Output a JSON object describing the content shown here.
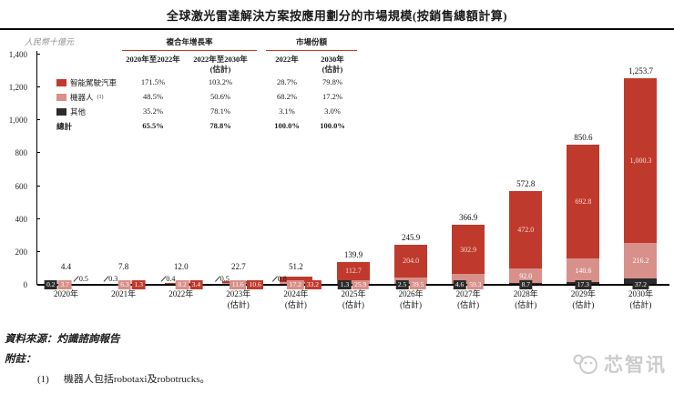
{
  "title": "全球激光雷達解決方案按應用劃分的市場規模(按銷售總額計算)",
  "unit_label": "人民幣十億元",
  "legend_table": {
    "group_headers": [
      "複合年增長率",
      "市場份額"
    ],
    "col_headers": [
      "2020年至2022年",
      "2022年至2030年\n(估計)",
      "2022年",
      "2030年\n(估計)"
    ],
    "rows": [
      {
        "label": "智能駕駛汽車",
        "sup": "",
        "swatch": "#bf3a2c",
        "bold": false,
        "values": [
          "171.5%",
          "103.2%",
          "28.7%",
          "79.8%"
        ]
      },
      {
        "label": "機器人",
        "sup": "(1)",
        "swatch": "#d8908a",
        "bold": false,
        "values": [
          "48.5%",
          "50.6%",
          "68.2%",
          "17.2%"
        ]
      },
      {
        "label": "其他",
        "sup": "",
        "swatch": "#2b2b2b",
        "bold": false,
        "values": [
          "35.2%",
          "78.1%",
          "3.1%",
          "3.0%"
        ]
      },
      {
        "label": "總計",
        "sup": "",
        "swatch": "",
        "bold": true,
        "values": [
          "65.5%",
          "78.8%",
          "100.0%",
          "100.0%"
        ]
      }
    ]
  },
  "chart_data": {
    "type": "bar",
    "stacked": true,
    "title": "全球激光雷達解決方案按應用劃分的市場規模(按銷售總額計算)",
    "ylabel": "人民幣十億元",
    "ylim": [
      0,
      1400
    ],
    "ytick_step": 200,
    "yticks": [
      "0",
      "200",
      "400",
      "600",
      "800",
      "1,000",
      "1,200",
      "1,400"
    ],
    "grid": false,
    "legend_position": "top-left",
    "stack_order_bottom_to_top": [
      "other",
      "robot",
      "auto"
    ],
    "series_meta": {
      "auto": {
        "name": "智能駕駛汽車",
        "color": "#bf3a2c"
      },
      "robot": {
        "name": "機器人(1)",
        "color": "#d8908a"
      },
      "other": {
        "name": "其他",
        "color": "#2b2b2b"
      }
    },
    "bars": [
      {
        "x": "2020年",
        "total": 4.4,
        "total_label": "4.4",
        "segments": {
          "other": {
            "v": 0.2,
            "label": "0.2",
            "mode": "chip"
          },
          "robot": {
            "v": 3.7,
            "label": "3.7",
            "mode": "chip"
          },
          "auto": {
            "v": 0.5,
            "label": "0.5",
            "mode": "callout"
          }
        }
      },
      {
        "x": "2021年",
        "total": 7.8,
        "total_label": "7.8",
        "segments": {
          "other": {
            "v": 0.3,
            "label": "0.3",
            "mode": "callout"
          },
          "robot": {
            "v": 6.3,
            "label": "6.3",
            "mode": "chip"
          },
          "auto": {
            "v": 1.3,
            "label": "1.3",
            "mode": "chip"
          }
        }
      },
      {
        "x": "2022年",
        "total": 12.0,
        "total_label": "12.0",
        "segments": {
          "other": {
            "v": 0.4,
            "label": "0.4",
            "mode": "callout"
          },
          "robot": {
            "v": 8.2,
            "label": "8.2",
            "mode": "chip"
          },
          "auto": {
            "v": 3.4,
            "label": "3.4",
            "mode": "chip"
          }
        }
      },
      {
        "x": "2023年\n(估計)",
        "total": 22.7,
        "total_label": "22.7",
        "segments": {
          "other": {
            "v": 0.5,
            "label": "0.5",
            "mode": "callout"
          },
          "robot": {
            "v": 11.6,
            "label": "11.6",
            "mode": "chip"
          },
          "auto": {
            "v": 10.6,
            "label": "10.6",
            "mode": "chip"
          }
        }
      },
      {
        "x": "2024年\n(估計)",
        "total": 51.2,
        "total_label": "51.2",
        "segments": {
          "other": {
            "v": 0.8,
            "label": "0.8",
            "mode": "callout"
          },
          "robot": {
            "v": 17.2,
            "label": "17.2",
            "mode": "chip"
          },
          "auto": {
            "v": 33.2,
            "label": "33.2",
            "mode": "chip"
          }
        }
      },
      {
        "x": "2025年\n(估計)",
        "total": 139.9,
        "total_label": "139.9",
        "segments": {
          "other": {
            "v": 1.3,
            "label": "1.3",
            "mode": "chip"
          },
          "robot": {
            "v": 25.9,
            "label": "25.9",
            "mode": "chip"
          },
          "auto": {
            "v": 112.7,
            "label": "112.7",
            "mode": "inside"
          }
        }
      },
      {
        "x": "2026年\n(估計)",
        "total": 245.9,
        "total_label": "245.9",
        "segments": {
          "other": {
            "v": 2.5,
            "label": "2.5",
            "mode": "chip"
          },
          "robot": {
            "v": 39.5,
            "label": "39.5",
            "mode": "chip"
          },
          "auto": {
            "v": 204.0,
            "label": "204.0",
            "mode": "inside"
          }
        }
      },
      {
        "x": "2027年\n(估計)",
        "total": 366.9,
        "total_label": "366.9",
        "segments": {
          "other": {
            "v": 4.6,
            "label": "4.6",
            "mode": "chip"
          },
          "robot": {
            "v": 59.3,
            "label": "59.3",
            "mode": "chip"
          },
          "auto": {
            "v": 302.9,
            "label": "302.9",
            "mode": "inside"
          }
        }
      },
      {
        "x": "2028年\n(估計)",
        "total": 572.8,
        "total_label": "572.8",
        "segments": {
          "other": {
            "v": 8.7,
            "label": "8.7",
            "mode": "chip"
          },
          "robot": {
            "v": 92.0,
            "label": "92.0",
            "mode": "inside"
          },
          "auto": {
            "v": 472.0,
            "label": "472.0",
            "mode": "inside"
          }
        }
      },
      {
        "x": "2029年\n(估計)",
        "total": 850.6,
        "total_label": "850.6",
        "segments": {
          "other": {
            "v": 17.3,
            "label": "17.3",
            "mode": "chip"
          },
          "robot": {
            "v": 140.6,
            "label": "140.6",
            "mode": "inside"
          },
          "auto": {
            "v": 692.8,
            "label": "692.8",
            "mode": "inside"
          }
        }
      },
      {
        "x": "2030年\n(估計)",
        "total": 1253.7,
        "total_label": "1,253.7",
        "segments": {
          "other": {
            "v": 37.2,
            "label": "37.2",
            "mode": "chip"
          },
          "robot": {
            "v": 216.2,
            "label": "216.2",
            "mode": "inside"
          },
          "auto": {
            "v": 1000.3,
            "label": "1,000.3",
            "mode": "inside"
          }
        }
      }
    ]
  },
  "footer": {
    "source": "資料來源：灼識諮詢報告",
    "note_header": "附註：",
    "note_num": "(1)",
    "note_text": "機器人包括robotaxi及robotrucks。"
  },
  "watermark": "芯智讯",
  "colors": {
    "red": "#bf3a2c",
    "pink": "#d8908a",
    "black": "#2b2b2b",
    "rule_red": "#c0392b"
  }
}
